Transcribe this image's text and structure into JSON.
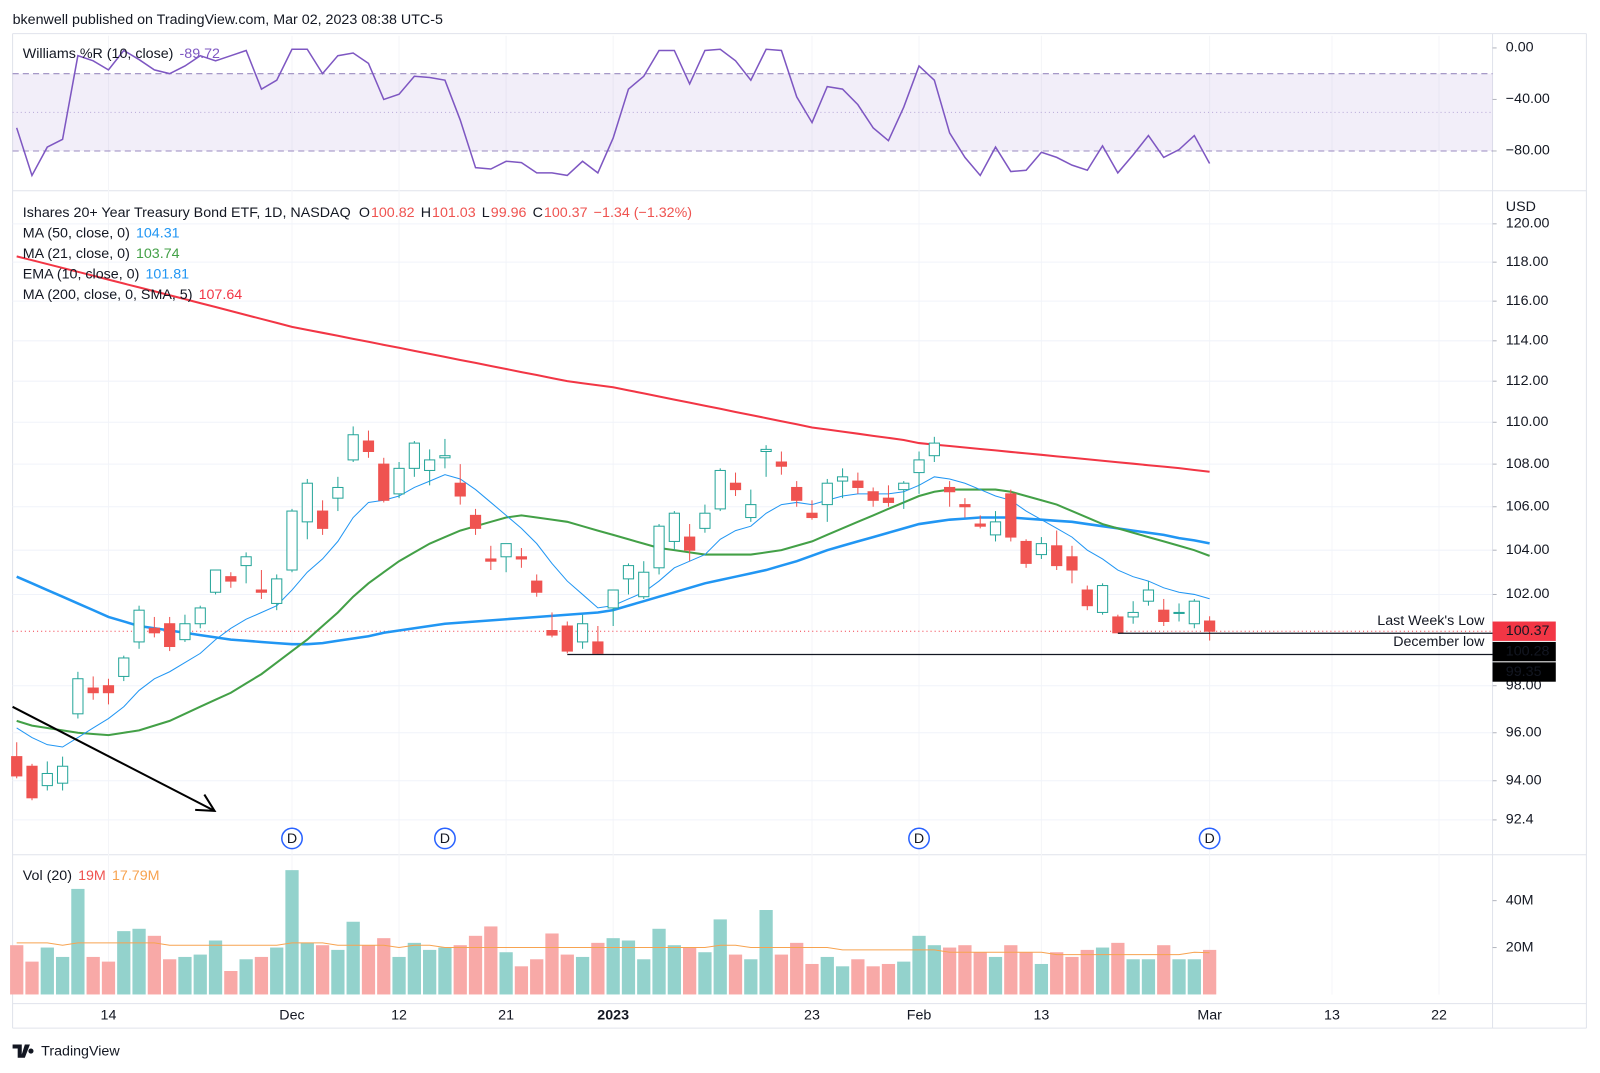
{
  "header": {
    "text": "bkenwell published on TradingView.com, Mar 02, 2023 08:38 UTC-5"
  },
  "footer": {
    "brand": "TradingView"
  },
  "chart_data": [
    {
      "type": "line",
      "legend": "Williams %R (10, close)",
      "color": "#7e57c2",
      "band": [
        -80,
        -20
      ],
      "midline": -50,
      "band_fill": "#7e57c2",
      "xlim": [
        -0.27,
        96.5
      ],
      "ylim": [
        -109.3,
        9.5
      ],
      "yticks": [
        {
          "value": 0,
          "label": "0.00"
        },
        {
          "value": -40,
          "label": "−40.00"
        },
        {
          "value": -80,
          "label": "−80.00"
        }
      ],
      "values": [
        -62,
        -99,
        -77,
        -71,
        -6,
        -10,
        -17,
        -2,
        -9,
        -17,
        -20,
        -14,
        -6,
        -10,
        -6,
        -2,
        -32,
        -25,
        -1,
        -1,
        -20,
        -6,
        -4,
        -12,
        -40,
        -36,
        -22,
        -23,
        -25,
        -56,
        -93,
        -94,
        -88,
        -89,
        -97,
        -97,
        -99,
        -88,
        -97,
        -70,
        -32,
        -22,
        -2,
        -2,
        -28,
        -2,
        -1,
        -10,
        -25,
        -1,
        -2,
        -38,
        -58,
        -30,
        -32,
        -44,
        -62,
        -72,
        -46,
        -14,
        -25,
        -66,
        -85,
        -99,
        -77,
        -96,
        -95,
        -81,
        -85,
        -91,
        -95,
        -76,
        -97,
        -83,
        -68,
        -85,
        -79,
        -68,
        -89.72
      ]
    },
    {
      "type": "candlestick",
      "title": "Ishares 20+ Year Treasury Bond ETF, 1D, NASDAQ",
      "ohlc_letters": [
        "O",
        "H",
        "L",
        "C"
      ],
      "change_label": "−1.34 (−1.32%)",
      "y_unit": "USD",
      "up_color": "#26a69a",
      "down_color": "#ef5350",
      "log_scale": true,
      "grid": true,
      "xlim": [
        -0.27,
        96.5
      ],
      "ylim": [
        91.0,
        121.7
      ],
      "yticks": [
        {
          "value": 120,
          "label": "120.00"
        },
        {
          "value": 118,
          "label": "118.00"
        },
        {
          "value": 116,
          "label": "116.00"
        },
        {
          "value": 114,
          "label": "114.00"
        },
        {
          "value": 112,
          "label": "112.00"
        },
        {
          "value": 110,
          "label": "110.00"
        },
        {
          "value": 108,
          "label": "108.00"
        },
        {
          "value": 106,
          "label": "106.00"
        },
        {
          "value": 104,
          "label": "104.00"
        },
        {
          "value": 102,
          "label": "102.00"
        },
        {
          "value": 98,
          "label": "98.00"
        },
        {
          "value": 96,
          "label": "96.00"
        },
        {
          "value": 94,
          "label": "94.00"
        },
        92.4
      ],
      "open": [
        95.0,
        94.6,
        93.8,
        93.9,
        96.8,
        97.9,
        98.0,
        98.4,
        99.9,
        100.5,
        100.7,
        100.0,
        100.7,
        102.1,
        102.8,
        103.3,
        102.2,
        101.6,
        103.1,
        105.3,
        105.8,
        106.4,
        108.2,
        109.1,
        108.0,
        106.6,
        107.8,
        107.7,
        108.3,
        107.1,
        105.6,
        103.6,
        103.7,
        103.7,
        102.6,
        100.4,
        100.6,
        99.9,
        99.9,
        101.4,
        102.7,
        101.9,
        103.2,
        104.4,
        104.6,
        105.0,
        105.9,
        107.1,
        105.5,
        108.6,
        108.1,
        106.9,
        105.7,
        106.1,
        107.2,
        107.2,
        106.7,
        106.4,
        106.8,
        107.6,
        108.4,
        106.9,
        106.1,
        105.2,
        104.7,
        106.6,
        104.4,
        103.8,
        104.2,
        103.7,
        102.2,
        101.2,
        101.0,
        101.0,
        101.7,
        101.3,
        101.2,
        100.7,
        100.82
      ],
      "high": [
        95.6,
        94.7,
        94.8,
        95.0,
        98.6,
        98.4,
        98.3,
        99.3,
        101.5,
        101.0,
        101.0,
        101.1,
        101.5,
        103.1,
        103.0,
        103.9,
        103.1,
        102.9,
        105.9,
        107.3,
        106.3,
        107.4,
        109.8,
        109.6,
        108.3,
        108.1,
        109.1,
        108.7,
        109.2,
        108.0,
        105.9,
        104.2,
        104.3,
        104.1,
        102.9,
        101.2,
        100.8,
        101.1,
        100.6,
        102.2,
        103.4,
        103.5,
        105.2,
        105.8,
        105.2,
        106.1,
        107.8,
        107.6,
        106.8,
        108.9,
        108.6,
        107.2,
        106.3,
        107.3,
        107.8,
        107.6,
        106.9,
        107.0,
        107.2,
        108.6,
        109.3,
        107.2,
        106.4,
        105.6,
        105.8,
        106.8,
        104.5,
        104.6,
        104.9,
        104.2,
        102.4,
        102.5,
        101.1,
        101.7,
        102.6,
        101.8,
        101.6,
        101.8,
        101.03
      ],
      "low": [
        94.1,
        93.2,
        93.6,
        93.6,
        96.6,
        97.4,
        97.2,
        98.2,
        99.6,
        100.1,
        99.5,
        99.9,
        100.5,
        102.0,
        102.3,
        102.5,
        101.8,
        101.3,
        103.0,
        104.5,
        104.7,
        105.8,
        108.1,
        108.3,
        106.2,
        106.4,
        107.4,
        107.0,
        107.8,
        106.1,
        104.7,
        103.1,
        103.0,
        103.2,
        101.9,
        100.1,
        99.4,
        99.6,
        99.35,
        100.6,
        102.0,
        101.8,
        102.9,
        104.0,
        103.5,
        104.8,
        105.8,
        106.5,
        105.3,
        107.4,
        107.5,
        106.0,
        105.4,
        105.3,
        106.4,
        106.6,
        106.0,
        106.0,
        105.9,
        106.6,
        108.1,
        106.0,
        105.5,
        105.0,
        104.4,
        104.4,
        103.2,
        103.6,
        103.1,
        102.5,
        101.3,
        101.1,
        100.28,
        100.7,
        101.5,
        100.6,
        100.8,
        100.5,
        99.96
      ],
      "close": [
        94.2,
        93.3,
        94.3,
        94.6,
        98.3,
        97.7,
        97.7,
        99.2,
        101.3,
        100.3,
        99.7,
        100.7,
        101.4,
        103.1,
        102.6,
        103.7,
        102.1,
        102.7,
        105.8,
        107.1,
        105.0,
        106.9,
        109.4,
        108.6,
        106.3,
        107.8,
        109.0,
        108.2,
        108.4,
        106.5,
        105.0,
        103.5,
        104.3,
        103.6,
        102.1,
        100.2,
        99.5,
        100.7,
        99.4,
        102.2,
        103.3,
        103.0,
        105.1,
        105.7,
        104.0,
        105.7,
        107.7,
        106.8,
        106.1,
        108.7,
        107.9,
        106.3,
        105.5,
        107.1,
        107.4,
        106.9,
        106.3,
        106.2,
        107.1,
        108.2,
        109.0,
        106.7,
        106.0,
        105.1,
        105.3,
        104.6,
        103.4,
        104.3,
        103.3,
        103.1,
        101.5,
        102.4,
        100.3,
        101.2,
        102.2,
        100.8,
        101.2,
        101.7,
        100.37
      ],
      "series": [
        {
          "name": "MA (50, close, 0)",
          "color": "#2196f3",
          "width": 2.5,
          "values": [
            102.8,
            102.5,
            102.2,
            101.9,
            101.6,
            101.3,
            101.0,
            100.8,
            100.6,
            100.5,
            100.4,
            100.3,
            100.2,
            100.1,
            100.0,
            99.95,
            99.9,
            99.85,
            99.8,
            99.8,
            99.85,
            99.95,
            100.05,
            100.15,
            100.3,
            100.4,
            100.5,
            100.6,
            100.7,
            100.75,
            100.8,
            100.85,
            100.9,
            100.95,
            101.0,
            101.05,
            101.1,
            101.15,
            101.2,
            101.3,
            101.5,
            101.7,
            101.9,
            102.1,
            102.3,
            102.5,
            102.65,
            102.8,
            102.95,
            103.1,
            103.3,
            103.5,
            103.75,
            104.0,
            104.2,
            104.4,
            104.6,
            104.8,
            105.0,
            105.2,
            105.3,
            105.4,
            105.45,
            105.5,
            105.5,
            105.5,
            105.45,
            105.4,
            105.35,
            105.3,
            105.2,
            105.1,
            105.0,
            104.9,
            104.8,
            104.7,
            104.55,
            104.45,
            104.31
          ]
        },
        {
          "name": "MA (21, close, 0)",
          "color": "#43a047",
          "width": 2,
          "values": [
            96.5,
            96.3,
            96.2,
            96.1,
            96.0,
            95.95,
            95.9,
            96.0,
            96.1,
            96.3,
            96.5,
            96.8,
            97.1,
            97.4,
            97.7,
            98.1,
            98.5,
            99.0,
            99.5,
            100.0,
            100.6,
            101.2,
            101.9,
            102.5,
            103.0,
            103.5,
            103.9,
            104.3,
            104.6,
            104.9,
            105.1,
            105.3,
            105.5,
            105.6,
            105.5,
            105.4,
            105.3,
            105.1,
            104.9,
            104.7,
            104.5,
            104.3,
            104.1,
            104.0,
            103.9,
            103.8,
            103.8,
            103.8,
            103.8,
            103.9,
            104.0,
            104.2,
            104.4,
            104.7,
            105.0,
            105.3,
            105.6,
            105.9,
            106.2,
            106.5,
            106.7,
            106.8,
            106.8,
            106.8,
            106.8,
            106.7,
            106.5,
            106.3,
            106.1,
            105.8,
            105.5,
            105.2,
            105.0,
            104.8,
            104.6,
            104.4,
            104.2,
            104.0,
            103.74
          ]
        },
        {
          "name": "EMA (10, close, 0)",
          "color": "#2196f3",
          "width": 1,
          "values": [
            96.2,
            95.8,
            95.5,
            95.4,
            95.8,
            96.2,
            96.6,
            97.1,
            97.8,
            98.3,
            98.6,
            99.0,
            99.4,
            100.0,
            100.5,
            100.9,
            101.2,
            101.5,
            102.2,
            103.0,
            103.6,
            104.4,
            105.5,
            106.2,
            106.3,
            106.5,
            106.9,
            107.2,
            107.5,
            107.3,
            106.8,
            106.2,
            105.6,
            105.0,
            104.3,
            103.4,
            102.6,
            102.0,
            101.4,
            101.5,
            101.8,
            102.1,
            102.6,
            103.2,
            103.5,
            103.8,
            104.5,
            104.9,
            105.1,
            105.7,
            106.1,
            106.2,
            106.1,
            106.3,
            106.5,
            106.6,
            106.6,
            106.6,
            106.7,
            107.0,
            107.4,
            107.3,
            107.1,
            106.8,
            106.5,
            106.3,
            105.8,
            105.4,
            105.0,
            104.6,
            104.0,
            103.6,
            103.1,
            102.8,
            102.6,
            102.3,
            102.1,
            102.0,
            101.81
          ]
        },
        {
          "name": "MA (200, close, 0, SMA, 5)",
          "color": "#f23645",
          "width": 2,
          "values": [
            118.3,
            118.1,
            117.9,
            117.7,
            117.5,
            117.3,
            117.1,
            116.9,
            116.7,
            116.5,
            116.3,
            116.1,
            115.9,
            115.7,
            115.5,
            115.3,
            115.1,
            114.9,
            114.7,
            114.55,
            114.4,
            114.25,
            114.1,
            113.95,
            113.8,
            113.65,
            113.5,
            113.35,
            113.2,
            113.05,
            112.9,
            112.75,
            112.6,
            112.45,
            112.3,
            112.15,
            112.0,
            111.9,
            111.8,
            111.7,
            111.55,
            111.4,
            111.25,
            111.1,
            110.95,
            110.8,
            110.65,
            110.5,
            110.35,
            110.2,
            110.05,
            109.9,
            109.75,
            109.65,
            109.55,
            109.45,
            109.35,
            109.25,
            109.15,
            109.0,
            108.93,
            108.86,
            108.79,
            108.72,
            108.65,
            108.58,
            108.51,
            108.44,
            108.37,
            108.3,
            108.23,
            108.16,
            108.09,
            108.02,
            107.95,
            107.88,
            107.81,
            107.72,
            107.64
          ]
        }
      ],
      "horizontal_lines": [
        {
          "text": "Last Week's Low",
          "value": 100.28,
          "start": 72,
          "color": "#131722",
          "text_color": "#22866c"
        },
        {
          "text": "December low",
          "value": 99.35,
          "start": 36,
          "color": "#131722",
          "text_color": "#22866c"
        }
      ],
      "price_labels": [
        {
          "value": 100.37,
          "color": "#f23645",
          "dotted_line": true
        },
        {
          "value": 100.28,
          "color": "#000000"
        },
        {
          "value": 99.35,
          "color": "#000000"
        }
      ],
      "dividends": [
        {
          "index": 18,
          "label": "D"
        },
        {
          "index": 28,
          "label": "D"
        },
        {
          "index": 59,
          "label": "D"
        },
        {
          "index": 78,
          "label": "D"
        }
      ]
    },
    {
      "type": "bar",
      "legend": "Vol (20)",
      "legend_values": [
        {
          "value": 19,
          "label": "19M",
          "color": "#ef5350"
        },
        {
          "value": 17.79,
          "label": "17.79M",
          "color": "#f7a350"
        }
      ],
      "up_color": "#93d2cc",
      "down_color": "#f8a9a7",
      "ma_color": "#f7a350",
      "xlim": [
        -0.27,
        96.5
      ],
      "ylim": [
        0,
        58.7
      ],
      "yticks": [
        {
          "value": 40,
          "label": "40M"
        },
        {
          "value": 20,
          "label": "20M"
        }
      ],
      "xticks": [
        {
          "value": 6,
          "label": "14"
        },
        {
          "value": 18,
          "label": "Dec"
        },
        {
          "value": 25,
          "label": "12"
        },
        {
          "value": 32,
          "label": "21"
        },
        {
          "value": 39,
          "label": "2023",
          "bold": true
        },
        {
          "value": 52,
          "label": "23"
        },
        {
          "value": 59,
          "label": "Feb"
        },
        {
          "value": 67,
          "label": "13"
        },
        {
          "value": 78,
          "label": "Mar"
        },
        {
          "value": 86,
          "label": "13"
        },
        {
          "value": 93,
          "label": "22"
        }
      ],
      "values": [
        21,
        14,
        20,
        16,
        45,
        16,
        14,
        27,
        28,
        25,
        15,
        16,
        17,
        23,
        10,
        15,
        16,
        20,
        53,
        22,
        21,
        19,
        31,
        21,
        24,
        16,
        22,
        19,
        20,
        21,
        25,
        29,
        18,
        12,
        15,
        26,
        17,
        16,
        22,
        24,
        23,
        15,
        28,
        21,
        20,
        18,
        32,
        17,
        15,
        36,
        17,
        22,
        13,
        16,
        12,
        15,
        12,
        13,
        14,
        25,
        21,
        20,
        21,
        18,
        16,
        21,
        18,
        13,
        18,
        16,
        19,
        20,
        22,
        15,
        15,
        21,
        15,
        15,
        19
      ],
      "ma_values": [
        22,
        22,
        22,
        21,
        22,
        22,
        22,
        22,
        22,
        22,
        21,
        21,
        21,
        21,
        21,
        21,
        21,
        21,
        22,
        22,
        22,
        21,
        21,
        21,
        21,
        20,
        21,
        21,
        20,
        20,
        20,
        20,
        20,
        20,
        20,
        20,
        20,
        20,
        20,
        20,
        20,
        20,
        20,
        20,
        20,
        20,
        21,
        21,
        20,
        20,
        20,
        20,
        20,
        20,
        19,
        19,
        19,
        19,
        19,
        19,
        19,
        18,
        18,
        18,
        18,
        18,
        18,
        18,
        17,
        17,
        17,
        17,
        17,
        17,
        17,
        17,
        17,
        18,
        17.79
      ]
    }
  ]
}
